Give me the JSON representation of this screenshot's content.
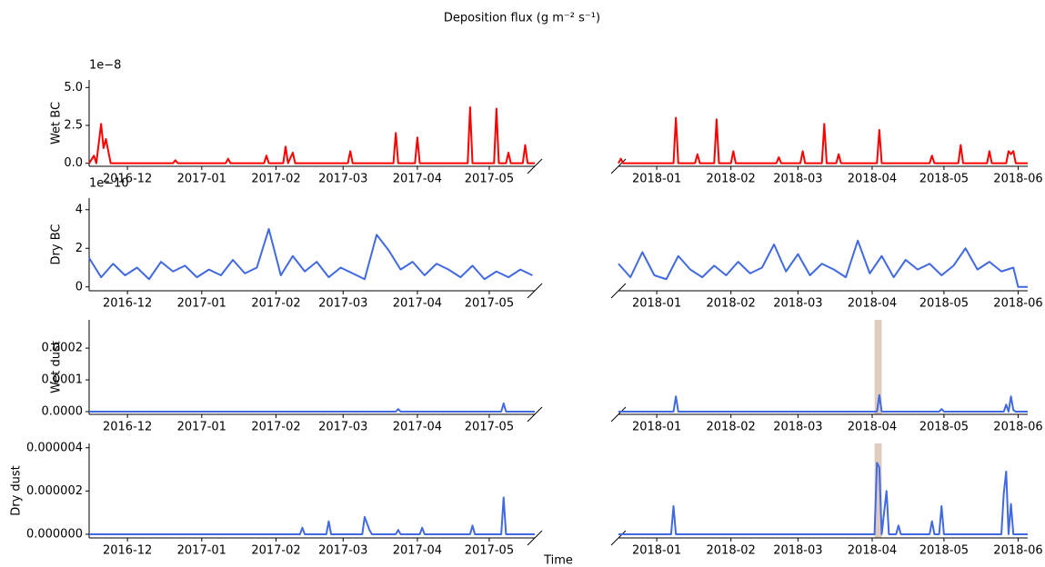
{
  "title": "Deposition flux (g m⁻² s⁻¹)",
  "xlabel": "Time",
  "chart_data": [
    {
      "type": "line",
      "ylabel": "Wet BC",
      "offset_label": "1e−8",
      "x": [
        "2016-11-15",
        "2016-11-17",
        "2016-11-18",
        "2016-11-20",
        "2016-11-21",
        "2016-11-22",
        "2016-11-24",
        "2016-12-20",
        "2016-12-21",
        "2016-12-22",
        "2017-01-11",
        "2017-01-12",
        "2017-01-13",
        "2017-01-27",
        "2017-01-28",
        "2017-01-29",
        "2017-02-04",
        "2017-02-05",
        "2017-02-06",
        "2017-02-08",
        "2017-02-09",
        "2017-03-03",
        "2017-03-04",
        "2017-03-05",
        "2017-03-22",
        "2017-03-23",
        "2017-03-24",
        "2017-03-31",
        "2017-04-01",
        "2017-04-02",
        "2017-04-22",
        "2017-04-23",
        "2017-04-24",
        "2017-05-03",
        "2017-05-04",
        "2017-05-05",
        "2017-05-08",
        "2017-05-09",
        "2017-05-10",
        "2017-05-15",
        "2017-05-16",
        "2017-05-17",
        "2017-05-20"
      ],
      "series": [
        {
          "color": "#ff0000",
          "values": [
            0,
            0.5,
            0,
            2.6,
            1.0,
            1.6,
            0,
            0,
            0.2,
            0,
            0,
            0.3,
            0,
            0,
            0.5,
            0,
            0,
            1.1,
            0,
            0.7,
            0,
            0,
            0.8,
            0,
            0,
            2.0,
            0,
            0,
            1.7,
            0,
            0,
            3.7,
            0,
            0,
            3.6,
            0,
            0,
            0.7,
            0,
            0,
            1.2,
            0,
            0
          ]
        }
      ],
      "xlim": [
        "2016-11-15",
        "2017-05-20"
      ],
      "xticks": [
        "2016-12",
        "2017-01",
        "2017-02",
        "2017-03",
        "2017-04",
        "2017-05"
      ],
      "ylim": [
        -0.2,
        5.5
      ],
      "yticks": [
        {
          "value": 0,
          "label": "0.0"
        },
        {
          "value": 2.5,
          "label": "2.5"
        },
        {
          "value": 5,
          "label": "5.0"
        }
      ]
    },
    {
      "type": "line",
      "x": [
        "2017-12-16",
        "2017-12-17",
        "2017-12-18",
        "2018-01-08",
        "2018-01-09",
        "2018-01-10",
        "2018-01-17",
        "2018-01-18",
        "2018-01-19",
        "2018-01-25",
        "2018-01-26",
        "2018-01-27",
        "2018-02-01",
        "2018-02-02",
        "2018-02-03",
        "2018-02-20",
        "2018-02-21",
        "2018-02-22",
        "2018-03-02",
        "2018-03-03",
        "2018-03-04",
        "2018-03-11",
        "2018-03-12",
        "2018-03-13",
        "2018-03-17",
        "2018-03-18",
        "2018-03-19",
        "2018-04-03",
        "2018-04-04",
        "2018-04-05",
        "2018-04-25",
        "2018-04-26",
        "2018-04-27",
        "2018-05-07",
        "2018-05-08",
        "2018-05-09",
        "2018-05-19",
        "2018-05-20",
        "2018-05-21",
        "2018-05-27",
        "2018-05-28",
        "2018-05-29",
        "2018-05-30",
        "2018-05-31",
        "2018-06-05"
      ],
      "series": [
        {
          "color": "#ff0000",
          "values": [
            0,
            0.3,
            0,
            0,
            3.0,
            0,
            0,
            0.6,
            0,
            0,
            2.9,
            0,
            0,
            0.8,
            0,
            0,
            0.4,
            0,
            0,
            0.8,
            0,
            0,
            2.6,
            0,
            0,
            0.6,
            0,
            0,
            2.2,
            0,
            0,
            0.5,
            0,
            0,
            1.2,
            0,
            0,
            0.8,
            0,
            0,
            0.8,
            0.6,
            0.8,
            0,
            0
          ]
        }
      ],
      "xlim": [
        "2017-12-16",
        "2018-06-05"
      ],
      "xticks": [
        "2018-01",
        "2018-02",
        "2018-03",
        "2018-04",
        "2018-05",
        "2018-06"
      ],
      "ylim": [
        -0.2,
        5.5
      ]
    },
    {
      "type": "line",
      "ylabel": "Dry BC",
      "offset_label": "1e−10",
      "x": [
        "2016-11-15",
        "2016-11-20",
        "2016-11-25",
        "2016-11-30",
        "2016-12-05",
        "2016-12-10",
        "2016-12-15",
        "2016-12-20",
        "2016-12-25",
        "2016-12-30",
        "2017-01-04",
        "2017-01-09",
        "2017-01-14",
        "2017-01-19",
        "2017-01-24",
        "2017-01-29",
        "2017-02-03",
        "2017-02-08",
        "2017-02-13",
        "2017-02-18",
        "2017-02-23",
        "2017-02-28",
        "2017-03-05",
        "2017-03-10",
        "2017-03-15",
        "2017-03-20",
        "2017-03-25",
        "2017-03-30",
        "2017-04-04",
        "2017-04-09",
        "2017-04-14",
        "2017-04-19",
        "2017-04-24",
        "2017-04-29",
        "2017-05-04",
        "2017-05-09",
        "2017-05-14",
        "2017-05-19"
      ],
      "series": [
        {
          "color": "#4169e1",
          "values": [
            1.5,
            0.5,
            1.2,
            0.6,
            1.0,
            0.4,
            1.3,
            0.8,
            1.1,
            0.5,
            0.9,
            0.6,
            1.4,
            0.7,
            1.0,
            3.0,
            0.6,
            1.6,
            0.8,
            1.3,
            0.5,
            1.0,
            0.7,
            0.4,
            2.7,
            1.9,
            0.9,
            1.3,
            0.6,
            1.2,
            0.9,
            0.5,
            1.1,
            0.4,
            0.8,
            0.5,
            0.9,
            0.6
          ]
        }
      ],
      "xlim": [
        "2016-11-15",
        "2017-05-20"
      ],
      "xticks": [
        "2016-12",
        "2017-01",
        "2017-02",
        "2017-03",
        "2017-04",
        "2017-05"
      ],
      "ylim": [
        -0.2,
        4.6
      ],
      "yticks": [
        0,
        2,
        4
      ]
    },
    {
      "type": "line",
      "x": [
        "2017-12-16",
        "2017-12-21",
        "2017-12-26",
        "2017-12-31",
        "2018-01-05",
        "2018-01-10",
        "2018-01-15",
        "2018-01-20",
        "2018-01-25",
        "2018-01-30",
        "2018-02-04",
        "2018-02-09",
        "2018-02-14",
        "2018-02-19",
        "2018-02-24",
        "2018-03-01",
        "2018-03-06",
        "2018-03-11",
        "2018-03-16",
        "2018-03-21",
        "2018-03-26",
        "2018-03-31",
        "2018-04-05",
        "2018-04-10",
        "2018-04-15",
        "2018-04-20",
        "2018-04-25",
        "2018-04-30",
        "2018-05-05",
        "2018-05-10",
        "2018-05-15",
        "2018-05-20",
        "2018-05-25",
        "2018-05-30",
        "2018-06-01",
        "2018-06-05"
      ],
      "series": [
        {
          "color": "#4169e1",
          "values": [
            1.2,
            0.5,
            1.8,
            0.6,
            0.4,
            1.6,
            0.9,
            0.5,
            1.1,
            0.6,
            1.3,
            0.7,
            1.0,
            2.2,
            0.8,
            1.7,
            0.6,
            1.2,
            0.9,
            0.5,
            2.4,
            0.7,
            1.6,
            0.5,
            1.4,
            0.9,
            1.2,
            0.6,
            1.1,
            2.0,
            0.9,
            1.3,
            0.8,
            1.0,
            0.0,
            0.0
          ]
        }
      ],
      "xlim": [
        "2017-12-16",
        "2018-06-05"
      ],
      "xticks": [
        "2018-01",
        "2018-02",
        "2018-03",
        "2018-04",
        "2018-05",
        "2018-06"
      ],
      "ylim": [
        -0.2,
        4.6
      ]
    },
    {
      "type": "line",
      "ylabel": "Wet  dust",
      "x": [
        "2016-11-15",
        "2017-03-23",
        "2017-03-24",
        "2017-03-25",
        "2017-05-06",
        "2017-05-07",
        "2017-05-08",
        "2017-05-20"
      ],
      "series": [
        {
          "color": "#4169e1",
          "values": [
            0,
            0,
            8e-06,
            0,
            0,
            2.6e-05,
            0,
            0
          ]
        }
      ],
      "xlim": [
        "2016-11-15",
        "2017-05-20"
      ],
      "xticks": [
        "2016-12",
        "2017-01",
        "2017-02",
        "2017-03",
        "2017-04",
        "2017-05"
      ],
      "ylim": [
        -8.6e-06,
        0.000289
      ],
      "yticks": [
        {
          "value": 0,
          "label": "0.0000"
        },
        {
          "value": 0.0001,
          "label": "0.0001"
        },
        {
          "value": 0.0002,
          "label": "0.0002"
        }
      ]
    },
    {
      "type": "line",
      "x": [
        "2017-12-16",
        "2018-01-08",
        "2018-01-09",
        "2018-01-10",
        "2018-04-03",
        "2018-04-04",
        "2018-04-05",
        "2018-04-29",
        "2018-04-30",
        "2018-05-01",
        "2018-05-26",
        "2018-05-27",
        "2018-05-28",
        "2018-05-29",
        "2018-05-30",
        "2018-05-31",
        "2018-06-05"
      ],
      "series": [
        {
          "color": "#4169e1",
          "values": [
            0,
            0,
            4.8e-05,
            0,
            0,
            5.2e-05,
            0,
            0,
            8e-06,
            0,
            0,
            2.2e-05,
            0,
            4.8e-05,
            5e-06,
            0,
            0
          ]
        }
      ],
      "xlim": [
        "2017-12-16",
        "2018-06-05"
      ],
      "xticks": [
        "2018-01",
        "2018-02",
        "2018-03",
        "2018-04",
        "2018-05",
        "2018-06"
      ],
      "ylim": [
        -8.6e-06,
        0.000289
      ],
      "span": [
        "2018-04-02",
        "2018-04-05"
      ],
      "span_color": "#dcc6b8"
    },
    {
      "type": "line",
      "ylabel": "Dry dust",
      "x": [
        "2016-11-15",
        "2017-02-11",
        "2017-02-12",
        "2017-02-13",
        "2017-02-22",
        "2017-02-23",
        "2017-02-24",
        "2017-03-09",
        "2017-03-10",
        "2017-03-12",
        "2017-03-13",
        "2017-03-23",
        "2017-03-24",
        "2017-03-25",
        "2017-04-02",
        "2017-04-03",
        "2017-04-04",
        "2017-04-23",
        "2017-04-24",
        "2017-04-25",
        "2017-05-06",
        "2017-05-07",
        "2017-05-08",
        "2017-05-20"
      ],
      "series": [
        {
          "color": "#4169e1",
          "values": [
            0,
            0,
            3e-07,
            0,
            0,
            6e-07,
            0,
            0,
            8e-07,
            2e-07,
            0,
            0,
            2e-07,
            0,
            0,
            3e-07,
            0,
            0,
            4e-07,
            0,
            0,
            1.7e-06,
            0,
            0
          ]
        }
      ],
      "xlim": [
        "2016-11-15",
        "2017-05-20"
      ],
      "xticks": [
        "2016-12",
        "2017-01",
        "2017-02",
        "2017-03",
        "2017-04",
        "2017-05"
      ],
      "ylim": [
        -1.7e-07,
        4.2e-06
      ],
      "yticks": [
        {
          "value": 0,
          "label": "0.000000"
        },
        {
          "value": 2e-06,
          "label": "0.000002"
        },
        {
          "value": 4e-06,
          "label": "0.000004"
        }
      ]
    },
    {
      "type": "line",
      "x": [
        "2017-12-16",
        "2018-01-07",
        "2018-01-08",
        "2018-01-09",
        "2018-04-02",
        "2018-04-03",
        "2018-04-04",
        "2018-04-05",
        "2018-04-07",
        "2018-04-08",
        "2018-04-11",
        "2018-04-12",
        "2018-04-13",
        "2018-04-25",
        "2018-04-26",
        "2018-04-27",
        "2018-04-29",
        "2018-04-30",
        "2018-05-01",
        "2018-05-25",
        "2018-05-26",
        "2018-05-27",
        "2018-05-28",
        "2018-05-29",
        "2018-05-30",
        "2018-06-05"
      ],
      "series": [
        {
          "color": "#4169e1",
          "values": [
            0,
            0,
            1.3e-06,
            0,
            0,
            3.3e-06,
            3.1e-06,
            0,
            2e-06,
            0,
            0,
            4e-07,
            0,
            0,
            6e-07,
            0,
            0,
            1.3e-06,
            0,
            0,
            1.9e-06,
            2.9e-06,
            0,
            1.4e-06,
            0,
            0
          ]
        }
      ],
      "xlim": [
        "2017-12-16",
        "2018-06-05"
      ],
      "xticks": [
        "2018-01",
        "2018-02",
        "2018-03",
        "2018-04",
        "2018-05",
        "2018-06"
      ],
      "ylim": [
        -1.7e-07,
        4.2e-06
      ],
      "span": [
        "2018-04-02",
        "2018-04-05"
      ],
      "span_color": "#dcc6b8"
    }
  ]
}
